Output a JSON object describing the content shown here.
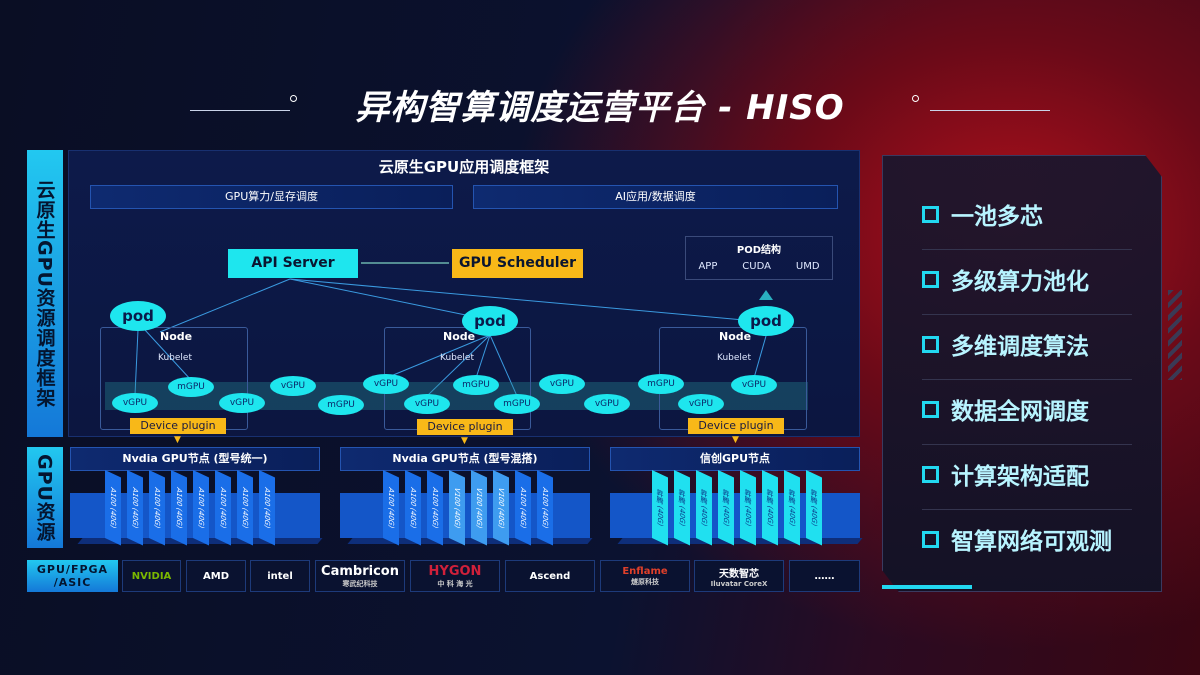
{
  "title": "异构智算调度运营平台 - HISO",
  "side_labels": {
    "framework": "云原生GPU资源调度框架",
    "resources": "GPU资源"
  },
  "framework": {
    "header": "云原生GPU应用调度框架",
    "bars": [
      "GPU算力/显存调度",
      "AI应用/数据调度"
    ],
    "api_server": "API Server",
    "gpu_scheduler": "GPU Scheduler",
    "pod_structure": {
      "title": "POD结构",
      "items": [
        "APP",
        "CUDA",
        "UMD"
      ]
    },
    "pod_label": "pod",
    "node_label": "Node",
    "kubelet_label": "Kubelet",
    "device_plugin": "Device plugin",
    "virtual_gpus": [
      "vGPU",
      "mGPU",
      "vGPU",
      "vGPU",
      "mGPU",
      "vGPU",
      "vGPU",
      "mGPU",
      "mGPU",
      "vGPU",
      "vGPU",
      "mGPU",
      "vGPU",
      "vGPU"
    ]
  },
  "gpu_nodes": [
    {
      "title": "Nvdia GPU节点 (型号统一)",
      "cards": [
        "A100 (40G)",
        "A100 (40G)",
        "A100 (40G)",
        "A100 (40G)",
        "A100 (40G)",
        "A100 (40G)",
        "A100 (40G)",
        "A100 (40G)"
      ]
    },
    {
      "title": "Nvdia GPU节点 (型号混搭)",
      "cards": [
        "A100 (40G)",
        "A100 (40G)",
        "A100 (40G)",
        "V100 (40G)",
        "V100 (40G)",
        "V100 (40G)",
        "A100 (40G)",
        "A100 (40G)"
      ]
    },
    {
      "title": "信创GPU节点",
      "cards": [
        "昇腾 (40G)",
        "昇腾 (40G)",
        "昇腾 (40G)",
        "昇腾 (40G)",
        "昇腾 (40G)",
        "昇腾 (40G)",
        "昇腾 (40G)",
        "昇腾 (40G)"
      ]
    }
  ],
  "vendors": {
    "label": "GPU/FPGA /ASIC",
    "items": [
      {
        "name": "NVIDIA",
        "sub": ""
      },
      {
        "name": "AMD",
        "sub": ""
      },
      {
        "name": "intel",
        "sub": ""
      },
      {
        "name": "Cambricon",
        "sub": "寒武纪科技"
      },
      {
        "name": "HYGON",
        "sub": "中 科 海 光"
      },
      {
        "name": "Ascend",
        "sub": ""
      },
      {
        "name": "Enflame",
        "sub": "燧原科技"
      },
      {
        "name": "天数智芯",
        "sub": "Iluvatar CoreX"
      },
      {
        "name": "……",
        "sub": ""
      }
    ]
  },
  "features": [
    "一池多芯",
    "多级算力池化",
    "多维调度算法",
    "数据全网调度",
    "计算架构适配",
    "智算网络可观测"
  ],
  "colors": {
    "cyan": "#1ee6ee",
    "orange": "#f8b818",
    "blue": "#1466d8",
    "red": "#b0101c"
  }
}
